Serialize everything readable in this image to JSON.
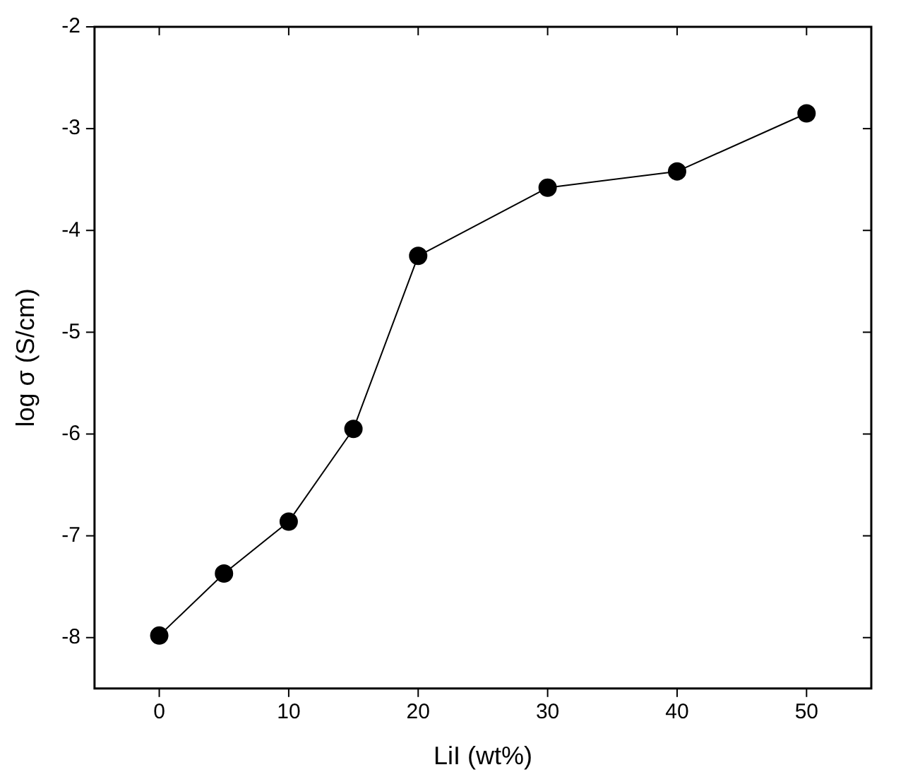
{
  "chart_data": {
    "type": "line",
    "xlabel": "LiI (wt%)",
    "ylabel": "log σ (S/cm)",
    "x": [
      0,
      5,
      10,
      15,
      20,
      30,
      40,
      50
    ],
    "series": [
      {
        "color": "#000000",
        "values": [
          -7.98,
          -7.37,
          -6.86,
          -5.95,
          -4.25,
          -3.58,
          -3.42,
          -2.85
        ]
      }
    ],
    "xlim": [
      -5,
      55
    ],
    "xticks": [
      0,
      10,
      20,
      30,
      40,
      50
    ],
    "ylim": [
      -8.5,
      -2
    ],
    "yticks": [
      -8,
      -7,
      -6,
      -5,
      -4,
      -3,
      -2
    ],
    "grid": false,
    "legend": false,
    "marker": "circle",
    "line_style": "solid"
  }
}
